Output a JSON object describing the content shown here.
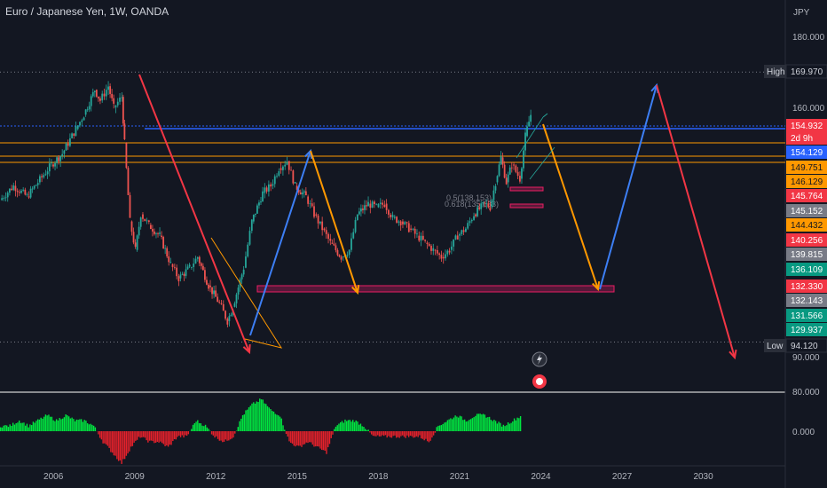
{
  "header": {
    "title": "Euro / Japanese Yen, 1W, OANDA",
    "currency": "JPY"
  },
  "chart_data": {
    "type": "line",
    "title": "Euro / Japanese Yen, 1W, OANDA",
    "xlabel": "",
    "ylabel": "JPY",
    "xlim": [
      2004.0,
      2033.0
    ],
    "ylim": [
      82,
      188
    ],
    "grid": false,
    "series": [
      {
        "values_x": [
          2004.0,
          2004.5,
          2005.0,
          2005.4,
          2005.9,
          2006.3,
          2006.8,
          2007.1,
          2007.5,
          2007.7,
          2008.0,
          2008.2,
          2008.5,
          2008.6,
          2008.8,
          2009.0,
          2009.2,
          2009.5,
          2009.9,
          2010.3,
          2010.6,
          2011.0,
          2011.3,
          2011.7,
          2012.1,
          2012.4,
          2012.6,
          2013.0,
          2013.3,
          2013.7,
          2014.0,
          2014.3,
          2014.6,
          2014.9,
          2015.3,
          2015.6,
          2015.9,
          2016.2,
          2016.6,
          2016.9,
          2017.2,
          2017.6,
          2017.9,
          2018.2,
          2018.5,
          2018.8,
          2019.1,
          2019.4,
          2019.7,
          2020.0,
          2020.3,
          2020.6,
          2020.9,
          2021.2,
          2021.5,
          2021.9,
          2022.1,
          2022.3,
          2022.5,
          2022.7,
          2022.9,
          2023.2,
          2023.4,
          2023.6
        ],
        "values": [
          134,
          138,
          135,
          139,
          144,
          147,
          154,
          158,
          165,
          162,
          166,
          160,
          163,
          150,
          128,
          120,
          130,
          127,
          124,
          116,
          112,
          115,
          118,
          110,
          105,
          100,
          104,
          115,
          128,
          136,
          138,
          143,
          145,
          138,
          135,
          130,
          126,
          122,
          118,
          120,
          130,
          133,
          132,
          133,
          129,
          128,
          126,
          124,
          122,
          120,
          118,
          120,
          124,
          126,
          130,
          133,
          132,
          139,
          146,
          139,
          144,
          140,
          152,
          158
        ]
      }
    ],
    "indicator": {
      "label": "0.000",
      "values": [
        1,
        1,
        2,
        1,
        2,
        3,
        2,
        3,
        2,
        2,
        1,
        -2,
        -4,
        -6,
        -3,
        -1,
        -2,
        -2,
        -3,
        -1,
        -1,
        2,
        1,
        -1,
        -2,
        -1,
        3,
        5,
        6,
        4,
        3,
        -2,
        -3,
        -2,
        -3,
        -4,
        1,
        2,
        2,
        1,
        -1,
        -1,
        -1,
        -1,
        -1,
        -1,
        -2,
        1,
        2,
        3,
        2,
        3,
        3,
        2,
        1,
        2,
        3
      ]
    },
    "x_ticks": [
      "2006",
      "2009",
      "2012",
      "2015",
      "2018",
      "2021",
      "2024",
      "2027",
      "2030"
    ],
    "y_ticks": [
      "180.000",
      "160.000",
      "90.000",
      "80.000"
    ],
    "price_tags": [
      {
        "label": "High",
        "value": "169.970",
        "color": "#131722",
        "text": "#d1d4dc"
      },
      {
        "label": "",
        "value": "154.932",
        "color": "#f23645",
        "text": "#ffffff"
      },
      {
        "label": "",
        "value": "2d 9h",
        "color": "#f23645",
        "text": "#ffffff"
      },
      {
        "label": "",
        "value": "154.129",
        "color": "#2962ff",
        "text": "#ffffff"
      },
      {
        "label": "",
        "value": "149.751",
        "color": "#ff9800",
        "text": "#131722"
      },
      {
        "label": "",
        "value": "146.129",
        "color": "#ff9800",
        "text": "#131722"
      },
      {
        "label": "",
        "value": "145.764",
        "color": "#f23645",
        "text": "#ffffff"
      },
      {
        "label": "",
        "value": "145.152",
        "color": "#787b86",
        "text": "#ffffff"
      },
      {
        "label": "",
        "value": "144.432",
        "color": "#ff9800",
        "text": "#131722"
      },
      {
        "label": "",
        "value": "140.256",
        "color": "#f23645",
        "text": "#ffffff"
      },
      {
        "label": "",
        "value": "139.815",
        "color": "#787b86",
        "text": "#ffffff"
      },
      {
        "label": "",
        "value": "136.109",
        "color": "#089981",
        "text": "#ffffff"
      },
      {
        "label": "",
        "value": "132.330",
        "color": "#f23645",
        "text": "#ffffff"
      },
      {
        "label": "",
        "value": "132.143",
        "color": "#787b86",
        "text": "#ffffff"
      },
      {
        "label": "",
        "value": "131.566",
        "color": "#089981",
        "text": "#ffffff"
      },
      {
        "label": "",
        "value": "129.937",
        "color": "#089981",
        "text": "#ffffff"
      },
      {
        "label": "Low",
        "value": "94.120",
        "color": "#131722",
        "text": "#d1d4dc"
      }
    ],
    "fib_labels": [
      "0.5(138.153)",
      "0.618(135.633)"
    ],
    "colors": {
      "up": "#26a69a",
      "down": "#ef5350",
      "blue": "#2962ff",
      "orange": "#ff9800",
      "red": "#f23645",
      "zone": "#8a1a4a"
    }
  }
}
